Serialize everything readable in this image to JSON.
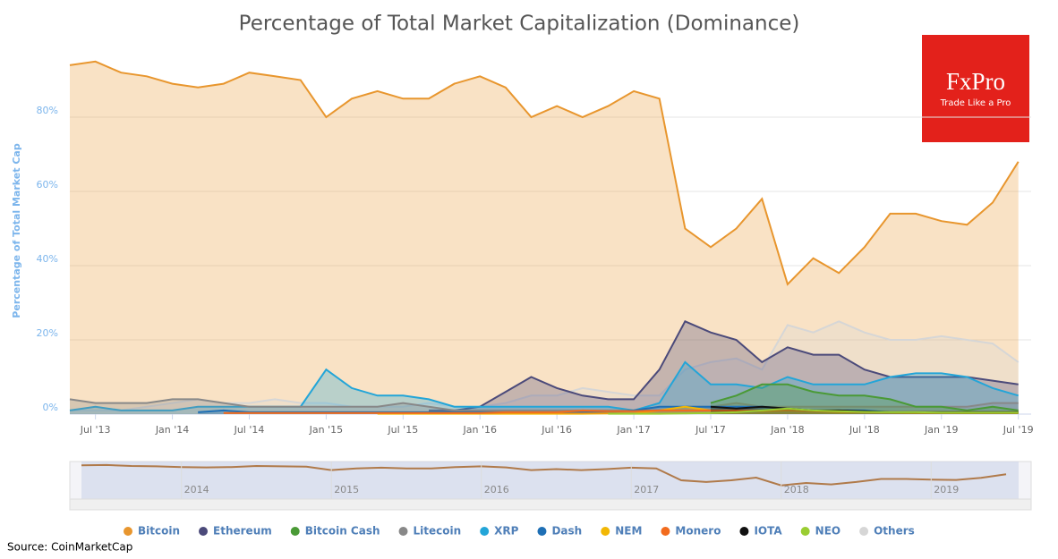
{
  "chart_data": {
    "type": "area",
    "title": "Percentage of Total Market Capitalization (Dominance)",
    "y_label": "Percentage of Total Market Cap",
    "source": "Source: CoinMarketCap",
    "logo": {
      "brand": "FxPro",
      "tagline": "Trade Like a Pro"
    },
    "grid": true,
    "legend": "bottom",
    "xlim": [
      "2013-05",
      "2019-08"
    ],
    "xticks": [
      {
        "value": "2013-07",
        "label": "Jul '13"
      },
      {
        "value": "2014-01",
        "label": "Jan '14"
      },
      {
        "value": "2014-07",
        "label": "Jul '14"
      },
      {
        "value": "2015-01",
        "label": "Jan '15"
      },
      {
        "value": "2015-07",
        "label": "Jul '15"
      },
      {
        "value": "2016-01",
        "label": "Jan '16"
      },
      {
        "value": "2016-07",
        "label": "Jul '16"
      },
      {
        "value": "2017-01",
        "label": "Jan '17"
      },
      {
        "value": "2017-07",
        "label": "Jul '17"
      },
      {
        "value": "2018-01",
        "label": "Jan '18"
      },
      {
        "value": "2018-07",
        "label": "Jul '18"
      },
      {
        "value": "2019-01",
        "label": "Jan '19"
      },
      {
        "value": "2019-07",
        "label": "Jul '19"
      }
    ],
    "ylim": [
      0,
      100
    ],
    "yticks": [
      {
        "value": 0,
        "label": "0%"
      },
      {
        "value": 20,
        "label": "20%"
      },
      {
        "value": 40,
        "label": "40%"
      },
      {
        "value": 60,
        "label": "60%"
      },
      {
        "value": 80,
        "label": "80%"
      }
    ],
    "navigator_xticks": [
      2014,
      2015,
      2016,
      2017,
      2018,
      2019
    ],
    "x": [
      "2013-05",
      "2013-07",
      "2013-09",
      "2013-11",
      "2014-01",
      "2014-03",
      "2014-05",
      "2014-07",
      "2014-09",
      "2014-11",
      "2015-01",
      "2015-03",
      "2015-05",
      "2015-07",
      "2015-09",
      "2015-11",
      "2016-01",
      "2016-03",
      "2016-05",
      "2016-07",
      "2016-09",
      "2016-11",
      "2017-01",
      "2017-03",
      "2017-05",
      "2017-07",
      "2017-09",
      "2017-11",
      "2018-01",
      "2018-03",
      "2018-05",
      "2018-07",
      "2018-09",
      "2018-11",
      "2019-01",
      "2019-03",
      "2019-05",
      "2019-07"
    ],
    "series": [
      {
        "name": "Bitcoin",
        "color": "#e8962e",
        "values": [
          94,
          95,
          92,
          91,
          89,
          88,
          89,
          92,
          91,
          90,
          80,
          85,
          87,
          85,
          85,
          89,
          91,
          88,
          80,
          83,
          80,
          83,
          87,
          85,
          50,
          45,
          50,
          58,
          35,
          42,
          38,
          45,
          54,
          54,
          52,
          51,
          57,
          68
        ]
      },
      {
        "name": "Ethereum",
        "color": "#4b4a7a",
        "values": [
          null,
          null,
          null,
          null,
          null,
          null,
          null,
          null,
          null,
          null,
          null,
          null,
          null,
          null,
          1,
          1,
          2,
          6,
          10,
          7,
          5,
          4,
          4,
          12,
          25,
          22,
          20,
          14,
          18,
          16,
          16,
          12,
          10,
          10,
          10,
          10,
          9,
          8
        ]
      },
      {
        "name": "Bitcoin Cash",
        "color": "#4a9a36",
        "values": [
          null,
          null,
          null,
          null,
          null,
          null,
          null,
          null,
          null,
          null,
          null,
          null,
          null,
          null,
          null,
          null,
          null,
          null,
          null,
          null,
          null,
          null,
          null,
          null,
          null,
          3,
          5,
          8,
          8,
          6,
          5,
          5,
          4,
          2,
          2,
          1,
          2,
          1
        ]
      },
      {
        "name": "Litecoin",
        "color": "#888888",
        "values": [
          4,
          3,
          3,
          3,
          4,
          4,
          3,
          2,
          2,
          2,
          2,
          2,
          2,
          3,
          2,
          1,
          1,
          1,
          1,
          1,
          1,
          1,
          1,
          1,
          2,
          2,
          3,
          2,
          2,
          2,
          2,
          2,
          2,
          2,
          2,
          2,
          3,
          3
        ]
      },
      {
        "name": "XRP",
        "color": "#23a5d8",
        "values": [
          1,
          2,
          1,
          1,
          1,
          2,
          2,
          2,
          2,
          2,
          12,
          7,
          5,
          5,
          4,
          2,
          2,
          2,
          2,
          2,
          2,
          2,
          1,
          3,
          14,
          8,
          8,
          7,
          10,
          8,
          8,
          8,
          10,
          11,
          11,
          10,
          7,
          5
        ]
      },
      {
        "name": "Dash",
        "color": "#1e6fb5",
        "values": [
          null,
          null,
          null,
          null,
          null,
          0.5,
          1,
          0.5,
          0.5,
          0.5,
          0.5,
          0.5,
          0.5,
          0.5,
          0.5,
          0.5,
          0.5,
          0.5,
          0.5,
          0.5,
          0.5,
          0.5,
          1,
          2,
          2,
          2,
          2,
          2,
          1.5,
          1,
          1,
          1,
          0.5,
          0.5,
          0.5,
          0.5,
          0.5,
          0.5
        ]
      },
      {
        "name": "NEM",
        "color": "#f2b705",
        "values": [
          null,
          null,
          null,
          null,
          null,
          null,
          null,
          null,
          null,
          null,
          null,
          null,
          0.1,
          0.1,
          0.1,
          0.1,
          0.1,
          0.1,
          0.1,
          0.1,
          0.1,
          0.2,
          0.2,
          1,
          2,
          1,
          1,
          0.8,
          1,
          0.8,
          0.5,
          0.5,
          0.4,
          0.3,
          0.3,
          0.3,
          0.3,
          0.3
        ]
      },
      {
        "name": "Monero",
        "color": "#f26b1d",
        "values": [
          null,
          null,
          null,
          null,
          null,
          null,
          0.3,
          0.3,
          0.3,
          0.3,
          0.3,
          0.3,
          0.3,
          0.3,
          0.3,
          0.3,
          0.3,
          0.5,
          0.5,
          0.5,
          1,
          0.8,
          0.8,
          1,
          1,
          1,
          1,
          1,
          1,
          0.8,
          0.8,
          0.6,
          0.5,
          0.5,
          0.5,
          0.5,
          0.5,
          0.5
        ]
      },
      {
        "name": "IOTA",
        "color": "#111111",
        "values": [
          null,
          null,
          null,
          null,
          null,
          null,
          null,
          null,
          null,
          null,
          null,
          null,
          null,
          null,
          null,
          null,
          null,
          null,
          null,
          null,
          null,
          null,
          null,
          null,
          null,
          2,
          1.5,
          2,
          1.5,
          1,
          1,
          0.8,
          0.5,
          0.5,
          0.5,
          0.5,
          0.5,
          0.5
        ]
      },
      {
        "name": "NEO",
        "color": "#9acd32",
        "values": [
          null,
          null,
          null,
          null,
          null,
          null,
          null,
          null,
          null,
          null,
          null,
          null,
          null,
          null,
          null,
          null,
          null,
          null,
          null,
          null,
          null,
          0.1,
          0.1,
          0.1,
          0.2,
          0.3,
          0.5,
          1,
          1.5,
          1,
          0.8,
          0.6,
          0.5,
          0.5,
          0.4,
          0.4,
          0.4,
          0.4
        ]
      },
      {
        "name": "Others",
        "color": "#d6d6d6",
        "values": [
          1,
          1,
          1,
          2,
          3,
          4,
          3,
          3,
          4,
          3,
          3,
          2,
          2,
          2,
          3,
          2,
          2,
          3,
          5,
          5,
          7,
          6,
          5,
          5,
          12,
          14,
          15,
          12,
          24,
          22,
          25,
          22,
          20,
          20,
          21,
          20,
          19,
          14
        ]
      }
    ]
  }
}
